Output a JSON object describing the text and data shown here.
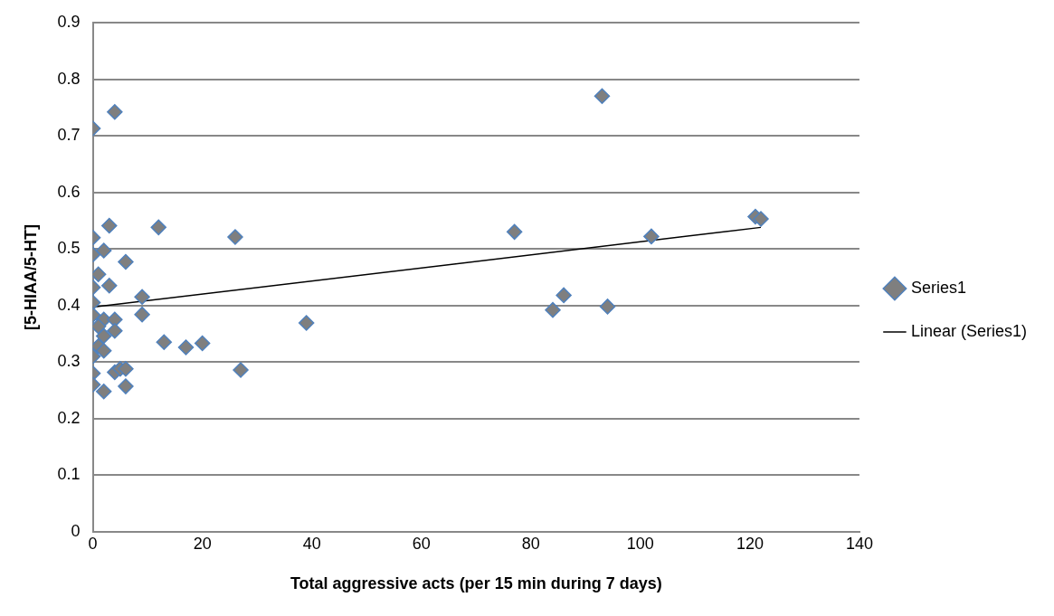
{
  "chart_data": {
    "type": "scatter",
    "xlabel": "Total aggressive acts (per 15 min during 7 days)",
    "ylabel": "[5-HIAA/5-HT]",
    "xlim": [
      0,
      140
    ],
    "xticks": [
      0,
      20,
      40,
      60,
      80,
      100,
      120,
      140
    ],
    "ylim": [
      0,
      0.9
    ],
    "yticks": [
      0,
      0.1,
      0.2,
      0.3,
      0.4,
      0.5,
      0.6,
      0.7,
      0.8,
      0.9
    ],
    "grid": "y",
    "legend": "right",
    "marker": "diamond",
    "series": [
      {
        "name": "Series1",
        "color": "#7f7f7f",
        "x": [
          0,
          4,
          0,
          3,
          12,
          26,
          0,
          2,
          1,
          6,
          0,
          3,
          0,
          9,
          0,
          2,
          4,
          9,
          1,
          4,
          2,
          1,
          2,
          0,
          13,
          17,
          20,
          0,
          4,
          5,
          6,
          27,
          0,
          2,
          6,
          39,
          77,
          84,
          86,
          93,
          94,
          102,
          121,
          122
        ],
        "values": [
          0.713,
          0.742,
          0.52,
          0.541,
          0.538,
          0.521,
          0.49,
          0.497,
          0.455,
          0.477,
          0.432,
          0.435,
          0.405,
          0.415,
          0.383,
          0.375,
          0.375,
          0.384,
          0.363,
          0.355,
          0.346,
          0.328,
          0.32,
          0.31,
          0.335,
          0.326,
          0.333,
          0.28,
          0.282,
          0.288,
          0.288,
          0.286,
          0.26,
          0.248,
          0.257,
          0.369,
          0.53,
          0.392,
          0.418,
          0.77,
          0.398,
          0.522,
          0.557,
          0.553
        ]
      },
      {
        "name": "Linear (Series1)",
        "type": "line",
        "color": "#000000",
        "line_style": "solid",
        "marker": "none",
        "x": [
          0,
          122
        ],
        "values": [
          0.397,
          0.538
        ]
      }
    ]
  }
}
